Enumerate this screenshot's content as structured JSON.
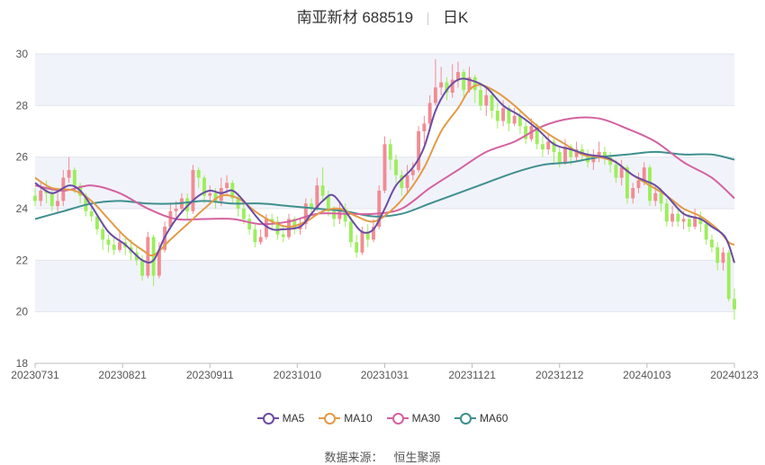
{
  "header": {
    "stock": "南亚新材 688519",
    "period": "日K"
  },
  "source": {
    "label": "数据来源：",
    "provider": "恒生聚源"
  },
  "colors": {
    "up": "#f08c93",
    "down": "#9cee5c",
    "ma5": "#6a4ca3",
    "ma10": "#e39a47",
    "ma30": "#d4619f",
    "ma60": "#3f8f8f",
    "band": "#f1f3fa",
    "grid": "#e3e6ee"
  },
  "chart_data": {
    "type": "candlestick",
    "yaxis": {
      "min": 18,
      "max": 30,
      "ticks": [
        18,
        20,
        22,
        24,
        26,
        28,
        30
      ]
    },
    "x_tick_labels": [
      "20230731",
      "20230821",
      "20230911",
      "20231010",
      "20231031",
      "20231121",
      "20231212",
      "20240103",
      "20240123"
    ],
    "legend": [
      "MA5",
      "MA10",
      "MA30",
      "MA60"
    ],
    "candles": [
      [
        24.5,
        24.3,
        24.8,
        24.1
      ],
      [
        24.3,
        24.7,
        25.0,
        24.1
      ],
      [
        24.7,
        24.6,
        25.1,
        24.2
      ],
      [
        24.6,
        24.1,
        24.8,
        23.9
      ],
      [
        24.1,
        24.3,
        24.6,
        23.8
      ],
      [
        24.3,
        25.2,
        25.5,
        24.1
      ],
      [
        25.2,
        25.5,
        26.0,
        25.0
      ],
      [
        25.5,
        24.9,
        25.6,
        24.6
      ],
      [
        24.9,
        24.5,
        25.0,
        24.2
      ],
      [
        24.5,
        23.9,
        24.6,
        23.7
      ],
      [
        23.9,
        23.7,
        24.1,
        23.5
      ],
      [
        23.7,
        23.2,
        23.8,
        23.0
      ],
      [
        23.2,
        22.8,
        23.4,
        22.4
      ],
      [
        22.8,
        22.6,
        23.0,
        22.3
      ],
      [
        22.6,
        22.4,
        22.9,
        22.2
      ],
      [
        22.4,
        22.7,
        23.1,
        22.3
      ],
      [
        22.7,
        22.5,
        22.9,
        22.2
      ],
      [
        22.5,
        22.3,
        22.8,
        22.0
      ],
      [
        22.3,
        22.0,
        22.5,
        21.8
      ],
      [
        22.0,
        21.4,
        22.2,
        21.2
      ],
      [
        21.4,
        22.9,
        23.1,
        21.3
      ],
      [
        22.9,
        21.4,
        23.0,
        21.0
      ],
      [
        21.4,
        22.4,
        22.7,
        21.3
      ],
      [
        22.4,
        23.3,
        23.5,
        22.3
      ],
      [
        23.3,
        23.9,
        24.2,
        23.2
      ],
      [
        23.9,
        24.0,
        24.3,
        23.6
      ],
      [
        24.0,
        24.4,
        24.6,
        23.8
      ],
      [
        24.4,
        23.9,
        24.6,
        23.6
      ],
      [
        23.9,
        25.5,
        25.7,
        23.8
      ],
      [
        25.5,
        25.2,
        25.6,
        24.8
      ],
      [
        25.2,
        24.5,
        25.3,
        24.2
      ],
      [
        24.5,
        24.6,
        24.9,
        24.3
      ],
      [
        24.6,
        24.3,
        24.8,
        24.0
      ],
      [
        24.3,
        24.8,
        25.2,
        24.1
      ],
      [
        24.8,
        25.0,
        25.3,
        24.5
      ],
      [
        25.0,
        24.4,
        25.1,
        24.2
      ],
      [
        24.4,
        24.0,
        24.5,
        23.7
      ],
      [
        24.0,
        23.6,
        24.2,
        23.4
      ],
      [
        23.6,
        23.2,
        23.8,
        23.0
      ],
      [
        23.2,
        22.7,
        23.4,
        22.5
      ],
      [
        22.7,
        22.9,
        23.2,
        22.6
      ],
      [
        22.9,
        23.6,
        23.8,
        22.8
      ],
      [
        23.6,
        23.5,
        23.8,
        23.2
      ],
      [
        23.5,
        23.0,
        23.7,
        22.8
      ],
      [
        23.0,
        22.9,
        23.3,
        22.7
      ],
      [
        22.9,
        23.6,
        23.8,
        22.8
      ],
      [
        23.6,
        23.2,
        23.7,
        23.0
      ],
      [
        23.2,
        23.4,
        23.6,
        23.0
      ],
      [
        23.4,
        24.2,
        24.4,
        23.2
      ],
      [
        24.2,
        24.0,
        24.4,
        23.7
      ],
      [
        24.0,
        24.9,
        25.2,
        23.9
      ],
      [
        24.9,
        24.5,
        25.6,
        24.3
      ],
      [
        24.5,
        23.9,
        24.7,
        23.7
      ],
      [
        23.9,
        23.6,
        24.1,
        23.3
      ],
      [
        23.6,
        24.0,
        24.2,
        23.4
      ],
      [
        24.0,
        23.5,
        24.2,
        23.3
      ],
      [
        23.5,
        22.7,
        23.7,
        22.5
      ],
      [
        22.7,
        22.3,
        23.0,
        22.1
      ],
      [
        22.3,
        23.1,
        23.3,
        22.2
      ],
      [
        23.1,
        22.8,
        23.4,
        22.5
      ],
      [
        22.8,
        23.3,
        23.6,
        22.7
      ],
      [
        23.3,
        24.7,
        24.9,
        23.2
      ],
      [
        24.7,
        26.5,
        26.8,
        24.6
      ],
      [
        26.5,
        25.9,
        26.7,
        25.5
      ],
      [
        25.9,
        25.3,
        26.1,
        25.0
      ],
      [
        25.3,
        24.8,
        25.5,
        24.5
      ],
      [
        24.8,
        25.3,
        25.7,
        24.6
      ],
      [
        25.3,
        25.5,
        25.8,
        25.1
      ],
      [
        25.5,
        27.0,
        27.2,
        25.4
      ],
      [
        27.0,
        27.3,
        27.6,
        26.5
      ],
      [
        27.3,
        28.1,
        28.4,
        27.0
      ],
      [
        28.1,
        28.7,
        29.8,
        28.0
      ],
      [
        28.7,
        28.9,
        29.5,
        28.4
      ],
      [
        28.9,
        28.5,
        29.1,
        28.2
      ],
      [
        28.5,
        29.0,
        29.6,
        28.3
      ],
      [
        29.0,
        29.3,
        29.7,
        28.7
      ],
      [
        29.3,
        28.6,
        29.4,
        28.3
      ],
      [
        28.6,
        29.1,
        29.5,
        28.5
      ],
      [
        29.1,
        28.6,
        29.2,
        28.1
      ],
      [
        28.6,
        28.0,
        28.9,
        27.8
      ],
      [
        28.0,
        28.4,
        28.7,
        27.6
      ],
      [
        28.4,
        27.8,
        28.6,
        27.5
      ],
      [
        27.8,
        27.4,
        28.1,
        27.1
      ],
      [
        27.4,
        27.9,
        28.2,
        27.2
      ],
      [
        27.9,
        27.3,
        28.0,
        27.0
      ],
      [
        27.3,
        27.6,
        27.9,
        27.2
      ],
      [
        27.6,
        27.2,
        27.8,
        26.9
      ],
      [
        27.2,
        26.7,
        27.4,
        26.5
      ],
      [
        26.7,
        27.2,
        27.5,
        26.6
      ],
      [
        27.2,
        26.5,
        27.3,
        26.3
      ],
      [
        26.5,
        26.3,
        26.8,
        26.0
      ],
      [
        26.3,
        26.6,
        26.9,
        26.1
      ],
      [
        26.6,
        26.2,
        26.7,
        25.8
      ],
      [
        26.2,
        25.8,
        26.4,
        25.6
      ],
      [
        25.8,
        26.4,
        26.7,
        25.7
      ],
      [
        26.4,
        26.0,
        26.5,
        25.7
      ],
      [
        26.0,
        26.3,
        26.6,
        25.8
      ],
      [
        26.3,
        26.1,
        26.5,
        25.9
      ],
      [
        26.1,
        25.8,
        26.3,
        25.6
      ],
      [
        25.8,
        26.0,
        26.3,
        25.5
      ],
      [
        26.0,
        26.2,
        26.6,
        25.8
      ],
      [
        26.2,
        26.0,
        26.4,
        25.7
      ],
      [
        26.0,
        25.7,
        26.2,
        25.4
      ],
      [
        25.7,
        25.2,
        25.9,
        25.0
      ],
      [
        25.2,
        25.6,
        25.9,
        24.9
      ],
      [
        25.6,
        24.4,
        25.7,
        24.2
      ],
      [
        24.4,
        24.8,
        25.0,
        24.2
      ],
      [
        24.8,
        25.1,
        25.4,
        24.6
      ],
      [
        25.1,
        25.6,
        25.8,
        24.9
      ],
      [
        25.6,
        24.3,
        25.7,
        24.1
      ],
      [
        24.3,
        24.6,
        24.9,
        24.1
      ],
      [
        24.6,
        24.2,
        24.8,
        23.9
      ],
      [
        24.2,
        23.5,
        24.4,
        23.3
      ],
      [
        23.5,
        23.8,
        24.1,
        23.3
      ],
      [
        23.8,
        23.5,
        24.0,
        23.3
      ],
      [
        23.5,
        23.6,
        23.9,
        23.2
      ],
      [
        23.6,
        23.3,
        23.8,
        23.1
      ],
      [
        23.3,
        23.7,
        24.0,
        23.2
      ],
      [
        23.7,
        23.4,
        23.9,
        23.1
      ],
      [
        23.4,
        22.8,
        23.6,
        22.6
      ],
      [
        22.8,
        22.5,
        23.0,
        22.3
      ],
      [
        22.5,
        21.9,
        22.7,
        21.6
      ],
      [
        21.9,
        22.3,
        22.5,
        21.6
      ],
      [
        22.3,
        20.5,
        22.4,
        20.4
      ],
      [
        20.5,
        20.1,
        20.9,
        19.7
      ]
    ],
    "ma5": [
      [
        0,
        25.0
      ],
      [
        3,
        24.6
      ],
      [
        6,
        24.9
      ],
      [
        8,
        24.7
      ],
      [
        10,
        24.1
      ],
      [
        13,
        23.1
      ],
      [
        16,
        22.6
      ],
      [
        19,
        22.0
      ],
      [
        21,
        22.0
      ],
      [
        23,
        22.9
      ],
      [
        25,
        23.6
      ],
      [
        27,
        24.1
      ],
      [
        29,
        24.5
      ],
      [
        31,
        24.7
      ],
      [
        33,
        24.6
      ],
      [
        35,
        24.7
      ],
      [
        37,
        24.3
      ],
      [
        40,
        23.5
      ],
      [
        42,
        23.2
      ],
      [
        44,
        23.2
      ],
      [
        47,
        23.3
      ],
      [
        49,
        23.8
      ],
      [
        51,
        24.3
      ],
      [
        53,
        24.5
      ],
      [
        56,
        23.6
      ],
      [
        58,
        23.1
      ],
      [
        60,
        23.2
      ],
      [
        62,
        24.0
      ],
      [
        64,
        24.9
      ],
      [
        67,
        25.6
      ],
      [
        69,
        26.4
      ],
      [
        71,
        27.8
      ],
      [
        73,
        28.6
      ],
      [
        75,
        29.0
      ],
      [
        77,
        29.0
      ],
      [
        80,
        28.7
      ],
      [
        83,
        28.0
      ],
      [
        86,
        27.6
      ],
      [
        89,
        27.1
      ],
      [
        92,
        26.5
      ],
      [
        95,
        26.3
      ],
      [
        98,
        26.1
      ],
      [
        101,
        26.0
      ],
      [
        103,
        25.8
      ],
      [
        106,
        25.3
      ],
      [
        108,
        25.1
      ],
      [
        110,
        24.9
      ],
      [
        112,
        24.5
      ],
      [
        115,
        23.8
      ],
      [
        118,
        23.6
      ],
      [
        120,
        23.3
      ],
      [
        122,
        23.0
      ],
      [
        123,
        22.6
      ],
      [
        124,
        21.9
      ]
    ],
    "ma10": [
      [
        0,
        25.2
      ],
      [
        3,
        24.8
      ],
      [
        7,
        24.7
      ],
      [
        10,
        24.3
      ],
      [
        13,
        23.6
      ],
      [
        16,
        22.9
      ],
      [
        19,
        22.4
      ],
      [
        21,
        22.2
      ],
      [
        24,
        22.8
      ],
      [
        27,
        23.4
      ],
      [
        30,
        24.0
      ],
      [
        33,
        24.5
      ],
      [
        36,
        24.4
      ],
      [
        39,
        23.9
      ],
      [
        42,
        23.5
      ],
      [
        45,
        23.3
      ],
      [
        48,
        23.5
      ],
      [
        51,
        23.9
      ],
      [
        54,
        24.0
      ],
      [
        57,
        23.7
      ],
      [
        60,
        23.5
      ],
      [
        63,
        23.9
      ],
      [
        66,
        24.6
      ],
      [
        69,
        25.6
      ],
      [
        72,
        27.0
      ],
      [
        75,
        27.9
      ],
      [
        77,
        28.6
      ],
      [
        79,
        28.8
      ],
      [
        82,
        28.5
      ],
      [
        85,
        28.0
      ],
      [
        88,
        27.4
      ],
      [
        91,
        26.9
      ],
      [
        94,
        26.5
      ],
      [
        97,
        26.1
      ],
      [
        100,
        26.0
      ],
      [
        103,
        25.8
      ],
      [
        106,
        25.3
      ],
      [
        109,
        24.9
      ],
      [
        112,
        24.5
      ],
      [
        115,
        24.0
      ],
      [
        118,
        23.7
      ],
      [
        121,
        23.2
      ],
      [
        123,
        22.7
      ],
      [
        124,
        22.6
      ]
    ],
    "ma30": [
      [
        0,
        24.9
      ],
      [
        5,
        24.7
      ],
      [
        10,
        24.9
      ],
      [
        15,
        24.6
      ],
      [
        20,
        24.0
      ],
      [
        25,
        23.6
      ],
      [
        30,
        23.6
      ],
      [
        35,
        23.6
      ],
      [
        40,
        23.4
      ],
      [
        45,
        23.5
      ],
      [
        50,
        23.8
      ],
      [
        55,
        23.8
      ],
      [
        60,
        23.8
      ],
      [
        65,
        24.0
      ],
      [
        70,
        24.8
      ],
      [
        75,
        25.5
      ],
      [
        80,
        26.2
      ],
      [
        85,
        26.6
      ],
      [
        90,
        27.2
      ],
      [
        95,
        27.5
      ],
      [
        100,
        27.5
      ],
      [
        105,
        27.1
      ],
      [
        110,
        26.6
      ],
      [
        115,
        25.8
      ],
      [
        120,
        25.2
      ],
      [
        124,
        24.4
      ]
    ],
    "ma60": [
      [
        0,
        23.6
      ],
      [
        5,
        23.9
      ],
      [
        10,
        24.2
      ],
      [
        15,
        24.3
      ],
      [
        20,
        24.2
      ],
      [
        25,
        24.2
      ],
      [
        30,
        24.3
      ],
      [
        35,
        24.2
      ],
      [
        40,
        24.2
      ],
      [
        45,
        24.1
      ],
      [
        50,
        24.0
      ],
      [
        55,
        23.9
      ],
      [
        60,
        23.7
      ],
      [
        65,
        23.8
      ],
      [
        70,
        24.2
      ],
      [
        75,
        24.6
      ],
      [
        80,
        25.0
      ],
      [
        85,
        25.4
      ],
      [
        90,
        25.7
      ],
      [
        95,
        25.8
      ],
      [
        100,
        26.0
      ],
      [
        105,
        26.1
      ],
      [
        110,
        26.2
      ],
      [
        115,
        26.1
      ],
      [
        120,
        26.1
      ],
      [
        124,
        25.9
      ]
    ]
  }
}
